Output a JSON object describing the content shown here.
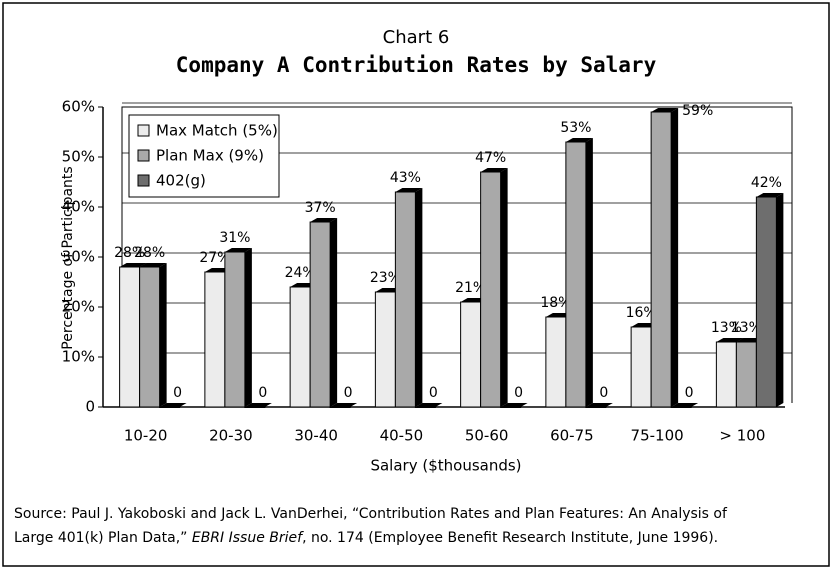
{
  "chart_data": {
    "type": "bar",
    "title": "Chart 6",
    "subtitle": "Company A Contribution Rates by Salary",
    "x_label": "Salary ($thousands)",
    "y_label": "Percentage of Participants",
    "categories": [
      "10-20",
      "20-30",
      "30-40",
      "40-50",
      "50-60",
      "60-75",
      "75-100",
      "> 100"
    ],
    "series": [
      {
        "name": "Max Match (5%)",
        "color": "#ececec",
        "values": [
          28,
          27,
          24,
          23,
          21,
          18,
          16,
          13
        ],
        "value_labels": [
          "28%",
          "27%",
          "24%",
          "23%",
          "21%",
          "18%",
          "16%",
          "13%"
        ]
      },
      {
        "name": "Plan Max (9%)",
        "color": "#a9a9a9",
        "values": [
          28,
          31,
          37,
          43,
          47,
          53,
          59,
          13
        ],
        "value_labels": [
          "28%",
          "31%",
          "37%",
          "43%",
          "47%",
          "53%",
          "59%",
          "13%"
        ]
      },
      {
        "name": "402(g)",
        "color": "#6e6e6e",
        "values": [
          0,
          0,
          0,
          0,
          0,
          0,
          0,
          42
        ],
        "value_labels": [
          "0",
          "0",
          "0",
          "0",
          "0",
          "0",
          "0",
          "42%"
        ]
      }
    ],
    "ylim": [
      0,
      60
    ],
    "yticks": [
      0,
      {
        "value": 10,
        "label": "10%"
      },
      {
        "value": 20,
        "label": "20%"
      },
      {
        "value": 30,
        "label": "30%"
      },
      {
        "value": 40,
        "label": "40%"
      },
      {
        "value": 50,
        "label": "50%"
      },
      {
        "value": 60,
        "label": "60%"
      }
    ],
    "grid": true,
    "legend": "top-left",
    "source": [
      "Source: Paul J. Yakoboski and Jack L. VanDerhei, “Contribution Rates and Plan Features: An Analysis of",
      "Large 401(k) Plan Data,” ",
      "EBRI Issue Brief",
      ", no. 174 (Employee Benefit Research Institute, June 1996)."
    ]
  }
}
